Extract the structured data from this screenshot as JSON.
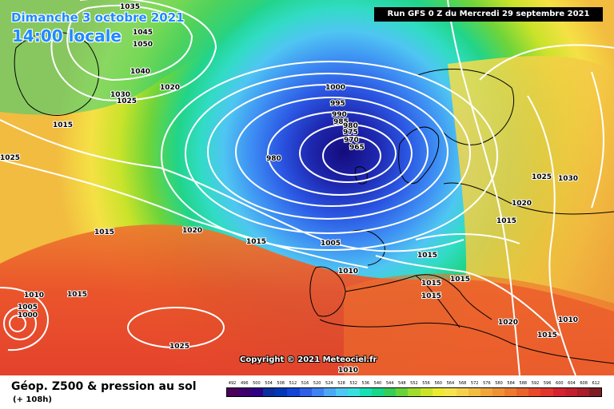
{
  "header": {
    "date_title": "Dimanche 3 octobre 2021",
    "time_title": "14:00 locale",
    "run_info": "Run GFS 0 Z du Mercredi 29 septembre 2021"
  },
  "copyright": "Copyright © 2021 Meteociel.fr",
  "legend": {
    "title": "Géop. Z500 & pression au sol",
    "subtitle": "(+ 108h)",
    "scale_values": [
      "492",
      "496",
      "500",
      "504",
      "508",
      "512",
      "516",
      "520",
      "524",
      "528",
      "532",
      "536",
      "540",
      "544",
      "548",
      "552",
      "556",
      "560",
      "564",
      "568",
      "572",
      "576",
      "580",
      "584",
      "588",
      "592",
      "596",
      "600",
      "604",
      "608",
      "612"
    ],
    "scale_colors": [
      "#4b0059",
      "#3d006e",
      "#2d0086",
      "#0d2e9e",
      "#0038b8",
      "#1244d6",
      "#2f5fe8",
      "#3f82f2",
      "#4aa8f4",
      "#4ec8f2",
      "#39dfe0",
      "#17e0b5",
      "#18d68a",
      "#36cd58",
      "#67d33a",
      "#a0dc2c",
      "#cbe42a",
      "#ecea34",
      "#f7e44c",
      "#f6d24c",
      "#f2bc40",
      "#f0a63a",
      "#ef9233",
      "#ec7b2e",
      "#ea632b",
      "#e84a2a",
      "#e2362c",
      "#d62330",
      "#c2202c",
      "#a81e2a",
      "#7e1c24"
    ],
    "field_colors": {
      "low": "#1e28b0",
      "mid": "#39dfe0",
      "high": "#ea632b"
    }
  },
  "isobars": {
    "labels": [
      "1035",
      "1045",
      "1050",
      "1040",
      "1030",
      "1025",
      "1020",
      "1015",
      "1025",
      "1000",
      "995",
      "990",
      "985",
      "980",
      "975",
      "970",
      "965",
      "980",
      "1025",
      "1030",
      "1020",
      "1015",
      "1015",
      "1020",
      "1015",
      "1005",
      "1015",
      "1010",
      "1015",
      "1015",
      "1015",
      "1010",
      "1005",
      "1000",
      "1015",
      "1020",
      "1025",
      "1010",
      "1015",
      "1010"
    ]
  }
}
